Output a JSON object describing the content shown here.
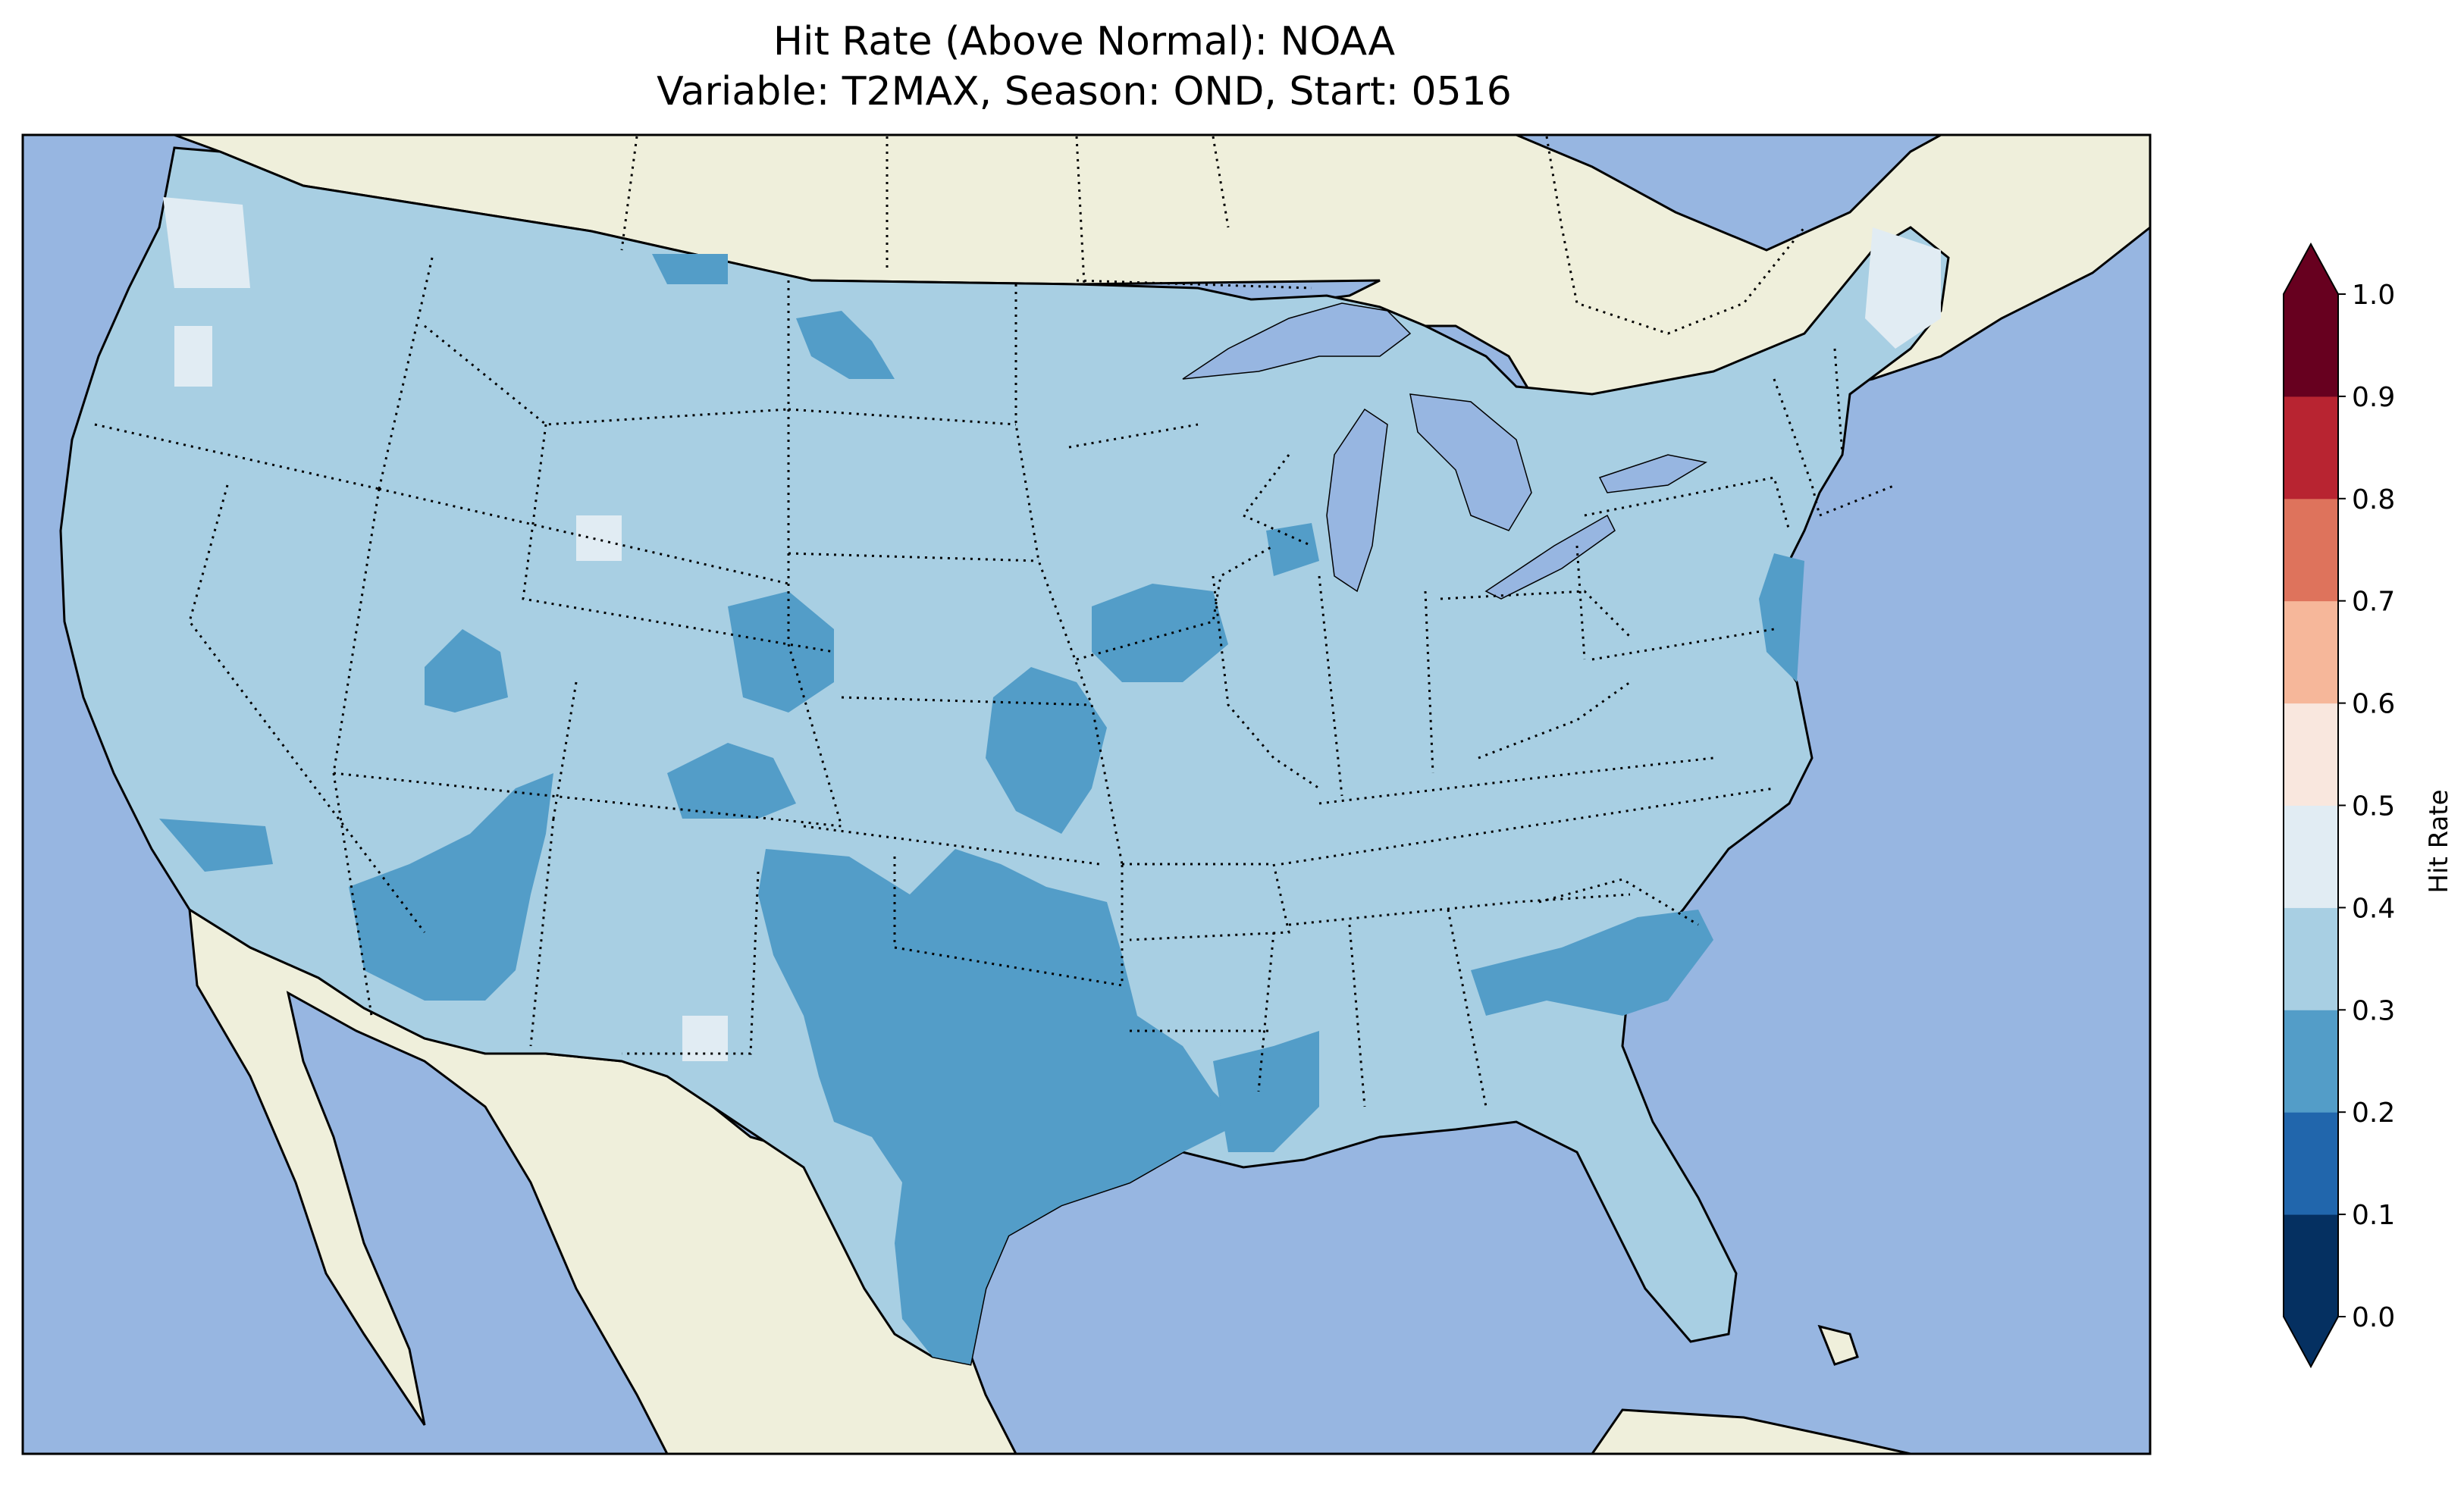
{
  "figure": {
    "title_line1": "Hit Rate (Above Normal): NOAA",
    "title_line2": "Variable: T2MAX, Season: OND, Start: 0516"
  },
  "map": {
    "ocean_color": "#97b6e1",
    "land_color": "#efefdb",
    "region": "Contiguous United States",
    "features": [
      "coastlines",
      "state-borders",
      "country-borders",
      "great-lakes"
    ]
  },
  "colorbar": {
    "label": "Hit Rate",
    "ticks": [
      "0.0",
      "0.1",
      "0.2",
      "0.3",
      "0.4",
      "0.5",
      "0.6",
      "0.7",
      "0.8",
      "0.9",
      "1.0"
    ],
    "bins": [
      {
        "range": [
          0.0,
          0.1
        ],
        "color": "#053061"
      },
      {
        "range": [
          0.1,
          0.2
        ],
        "color": "#2166ac"
      },
      {
        "range": [
          0.2,
          0.3
        ],
        "color": "#539dc8"
      },
      {
        "range": [
          0.3,
          0.4
        ],
        "color": "#a8cfe3"
      },
      {
        "range": [
          0.4,
          0.5
        ],
        "color": "#e1ecf3"
      },
      {
        "range": [
          0.5,
          0.6
        ],
        "color": "#f9e7de"
      },
      {
        "range": [
          0.6,
          0.7
        ],
        "color": "#f6b79a"
      },
      {
        "range": [
          0.7,
          0.8
        ],
        "color": "#de735c"
      },
      {
        "range": [
          0.8,
          0.9
        ],
        "color": "#b82431"
      },
      {
        "range": [
          0.9,
          1.0
        ],
        "color": "#67001f"
      }
    ],
    "extend": "both"
  },
  "hit_rate_field": {
    "dominant_value_range": [
      0.3,
      0.4
    ],
    "regions_0_2_to_0_3": [
      "Texas",
      "Oklahoma",
      "Arizona",
      "Nevada (south)",
      "Louisiana",
      "Colorado (east)",
      "Montana (east)",
      "New Jersey",
      "Delaware",
      "Georgia",
      "South Carolina"
    ],
    "regions_0_4_to_0_5": [
      "Washington (west)",
      "Oregon (west)",
      "Maine",
      "Wyoming spot",
      "New Mexico spot"
    ]
  }
}
